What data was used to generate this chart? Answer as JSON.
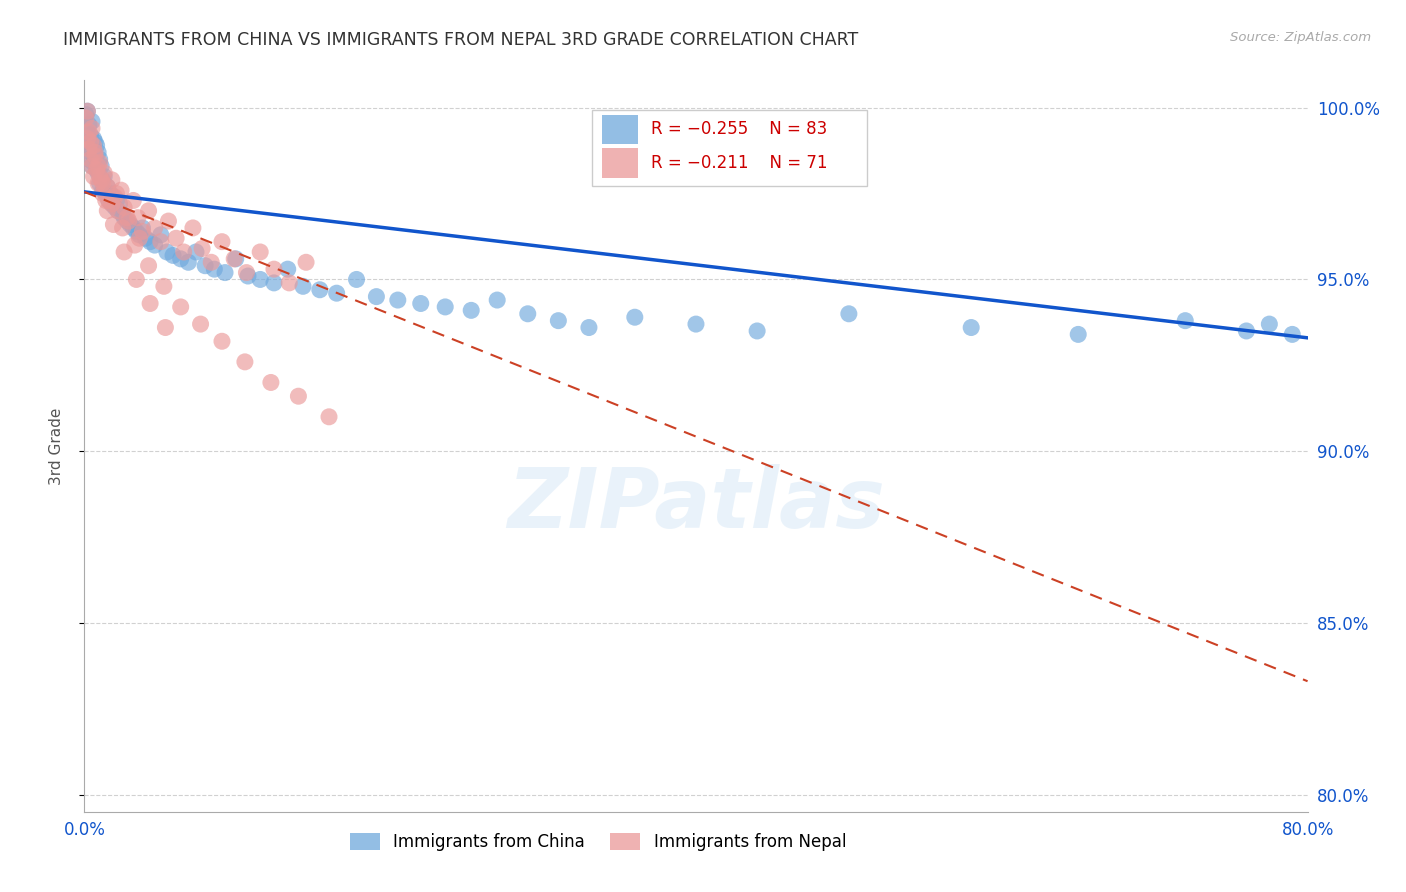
{
  "title": "IMMIGRANTS FROM CHINA VS IMMIGRANTS FROM NEPAL 3RD GRADE CORRELATION CHART",
  "source": "Source: ZipAtlas.com",
  "ylabel": "3rd Grade",
  "x_min": 0.0,
  "x_max": 0.8,
  "y_min": 0.795,
  "y_max": 1.008,
  "x_ticks": [
    0.0,
    0.1,
    0.2,
    0.3,
    0.4,
    0.5,
    0.6,
    0.7,
    0.8
  ],
  "y_ticks": [
    0.8,
    0.85,
    0.9,
    0.95,
    1.0
  ],
  "y_tick_labels": [
    "80.0%",
    "85.0%",
    "90.0%",
    "95.0%",
    "100.0%"
  ],
  "china_color": "#6fa8dc",
  "nepal_color": "#ea9999",
  "china_trend_color": "#1155cc",
  "nepal_trend_color": "#cc4125",
  "watermark": "ZIPatlas",
  "background_color": "#ffffff",
  "china_trend_x0": 0.0,
  "china_trend_y0": 0.9755,
  "china_trend_x1": 0.8,
  "china_trend_y1": 0.933,
  "nepal_trend_x0": 0.0,
  "nepal_trend_y0": 0.9755,
  "nepal_trend_x1": 0.8,
  "nepal_trend_y1": 0.833,
  "china_scatter_x": [
    0.001,
    0.002,
    0.002,
    0.003,
    0.003,
    0.003,
    0.004,
    0.004,
    0.005,
    0.005,
    0.005,
    0.006,
    0.006,
    0.007,
    0.007,
    0.008,
    0.008,
    0.009,
    0.009,
    0.01,
    0.01,
    0.011,
    0.012,
    0.012,
    0.013,
    0.014,
    0.015,
    0.016,
    0.017,
    0.018,
    0.019,
    0.02,
    0.021,
    0.022,
    0.023,
    0.025,
    0.026,
    0.028,
    0.03,
    0.032,
    0.034,
    0.036,
    0.038,
    0.04,
    0.043,
    0.046,
    0.05,
    0.054,
    0.058,
    0.063,
    0.068,
    0.073,
    0.079,
    0.085,
    0.092,
    0.099,
    0.107,
    0.115,
    0.124,
    0.133,
    0.143,
    0.154,
    0.165,
    0.178,
    0.191,
    0.205,
    0.22,
    0.236,
    0.253,
    0.27,
    0.29,
    0.31,
    0.33,
    0.36,
    0.4,
    0.44,
    0.5,
    0.58,
    0.65,
    0.72,
    0.76,
    0.775,
    0.79
  ],
  "china_scatter_y": [
    0.998,
    0.993,
    0.999,
    0.99,
    0.995,
    0.985,
    0.992,
    0.987,
    0.996,
    0.988,
    0.983,
    0.991,
    0.984,
    0.99,
    0.986,
    0.989,
    0.982,
    0.987,
    0.981,
    0.985,
    0.978,
    0.983,
    0.979,
    0.976,
    0.98,
    0.975,
    0.977,
    0.973,
    0.975,
    0.972,
    0.974,
    0.971,
    0.973,
    0.97,
    0.972,
    0.969,
    0.968,
    0.967,
    0.966,
    0.965,
    0.964,
    0.963,
    0.965,
    0.962,
    0.961,
    0.96,
    0.963,
    0.958,
    0.957,
    0.956,
    0.955,
    0.958,
    0.954,
    0.953,
    0.952,
    0.956,
    0.951,
    0.95,
    0.949,
    0.953,
    0.948,
    0.947,
    0.946,
    0.95,
    0.945,
    0.944,
    0.943,
    0.942,
    0.941,
    0.944,
    0.94,
    0.938,
    0.936,
    0.939,
    0.937,
    0.935,
    0.94,
    0.936,
    0.934,
    0.938,
    0.935,
    0.937,
    0.934
  ],
  "nepal_scatter_x": [
    0.001,
    0.002,
    0.002,
    0.003,
    0.003,
    0.004,
    0.004,
    0.005,
    0.005,
    0.006,
    0.006,
    0.007,
    0.008,
    0.009,
    0.01,
    0.011,
    0.012,
    0.013,
    0.015,
    0.016,
    0.018,
    0.02,
    0.022,
    0.024,
    0.026,
    0.029,
    0.032,
    0.035,
    0.038,
    0.042,
    0.046,
    0.05,
    0.055,
    0.06,
    0.065,
    0.071,
    0.077,
    0.083,
    0.09,
    0.098,
    0.106,
    0.115,
    0.124,
    0.134,
    0.145,
    0.015,
    0.021,
    0.028,
    0.036,
    0.007,
    0.009,
    0.012,
    0.018,
    0.025,
    0.033,
    0.042,
    0.052,
    0.063,
    0.076,
    0.09,
    0.105,
    0.122,
    0.14,
    0.16,
    0.01,
    0.014,
    0.019,
    0.026,
    0.034,
    0.043,
    0.053
  ],
  "nepal_scatter_y": [
    0.997,
    0.991,
    0.999,
    0.988,
    0.993,
    0.985,
    0.99,
    0.994,
    0.983,
    0.989,
    0.98,
    0.986,
    0.982,
    0.978,
    0.984,
    0.979,
    0.975,
    0.981,
    0.977,
    0.973,
    0.979,
    0.974,
    0.97,
    0.976,
    0.971,
    0.967,
    0.973,
    0.968,
    0.964,
    0.97,
    0.965,
    0.961,
    0.967,
    0.962,
    0.958,
    0.965,
    0.959,
    0.955,
    0.961,
    0.956,
    0.952,
    0.958,
    0.953,
    0.949,
    0.955,
    0.97,
    0.975,
    0.968,
    0.962,
    0.987,
    0.983,
    0.978,
    0.972,
    0.965,
    0.96,
    0.954,
    0.948,
    0.942,
    0.937,
    0.932,
    0.926,
    0.92,
    0.916,
    0.91,
    0.98,
    0.973,
    0.966,
    0.958,
    0.95,
    0.943,
    0.936
  ]
}
